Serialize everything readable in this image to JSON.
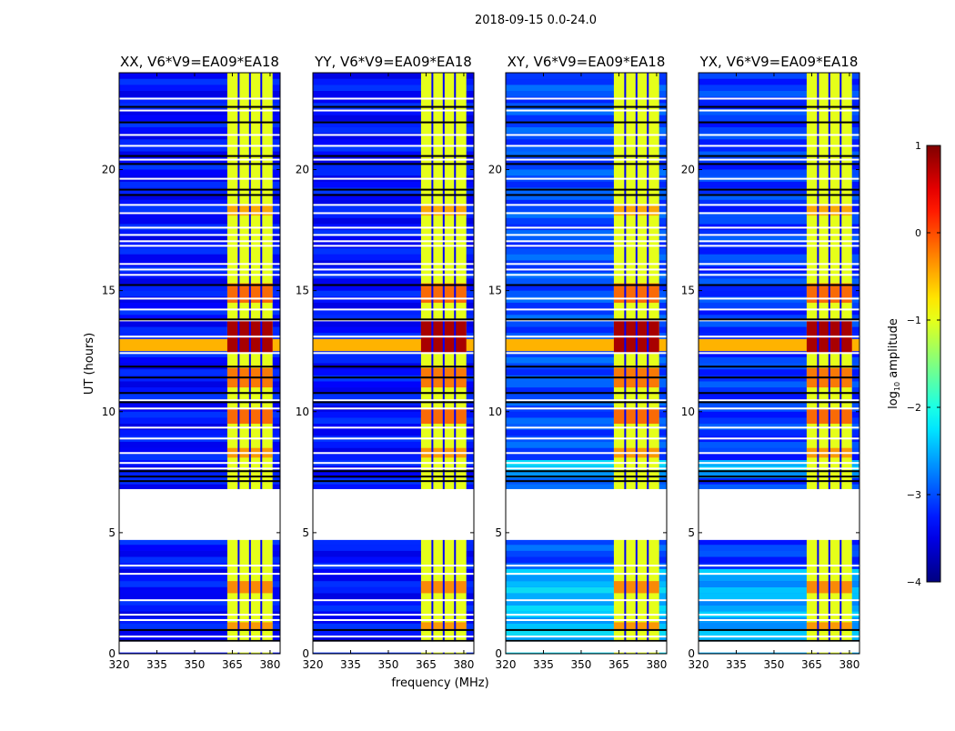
{
  "chart_data": {
    "type": "heatmap",
    "suptitle": "2018-09-15 0.0-24.0",
    "xlabel": "frequency (MHz)",
    "ylabel": "UT (hours)",
    "xlim": [
      320,
      384
    ],
    "ylim": [
      0,
      24
    ],
    "xticks": [
      320,
      335,
      350,
      365,
      380
    ],
    "yticks": [
      0,
      5,
      10,
      15,
      20
    ],
    "panels": [
      {
        "title": "XX, V6*V9=EA09*EA18",
        "background": -3.3,
        "cyan_rows": false
      },
      {
        "title": "YY, V6*V9=EA09*EA18",
        "background": -3.3,
        "cyan_rows": false
      },
      {
        "title": "XY, V6*V9=EA09*EA18",
        "background": -3.0,
        "cyan_rows": true
      },
      {
        "title": "YX, V6*V9=EA09*EA18",
        "background": -3.1,
        "cyan_rows": true
      }
    ],
    "band": {
      "start_mhz": 363,
      "end_mhz": 381,
      "level": -1.0,
      "channel_edges_mhz": [
        367.5,
        372,
        376.5
      ]
    },
    "rfi": {
      "start_h": 12.4,
      "end_h": 13.8,
      "level": 0.8,
      "broadband_start_h": 12.5,
      "broadband_end_h": 13.0,
      "broadband_level": -0.5
    },
    "hot_rows": [
      [
        14.5,
        15.3,
        0.1
      ],
      [
        11.0,
        11.8,
        0.0
      ],
      [
        9.5,
        10.1,
        0.1
      ],
      [
        8.1,
        8.5,
        -0.2
      ],
      [
        2.5,
        3.0,
        -0.1
      ],
      [
        1.0,
        1.3,
        -0.2
      ],
      [
        18.1,
        18.5,
        -0.3
      ]
    ],
    "data_gaps_h": [
      [
        4.7,
        6.8
      ],
      [
        0.05,
        0.5
      ]
    ],
    "flagged_rows_h": [
      22.93,
      22.44,
      21.43,
      20.98,
      20.41,
      19.62,
      18.54,
      18.2,
      17.6,
      17.3,
      17.04,
      16.85,
      16.1,
      15.87,
      15.65,
      14.67,
      14.22,
      13.77,
      13.1,
      12.42,
      10.47,
      10.13,
      9.34,
      8.89,
      8.29,
      7.88,
      7.65,
      3.64,
      3.3,
      2.21,
      1.61,
      1.39,
      0.71,
      0.26
    ],
    "dark_rows_h": [
      22.59,
      21.95,
      20.56,
      20.23,
      19.17,
      18.95,
      15.23,
      13.81,
      11.86,
      11.41,
      10.77,
      10.39,
      7.54,
      7.32,
      7.13,
      0.98,
      0.53
    ],
    "colorbar": {
      "label_prefix": "log",
      "label_sub": "10",
      "label_suffix": " amplitude",
      "range": [
        -4,
        1
      ],
      "ticks": [
        1,
        0,
        -1,
        -2,
        -3,
        -4
      ],
      "tick_labels": [
        "1",
        "0",
        "−1",
        "−2",
        "−3",
        "−4"
      ],
      "colormap": "jet"
    }
  }
}
